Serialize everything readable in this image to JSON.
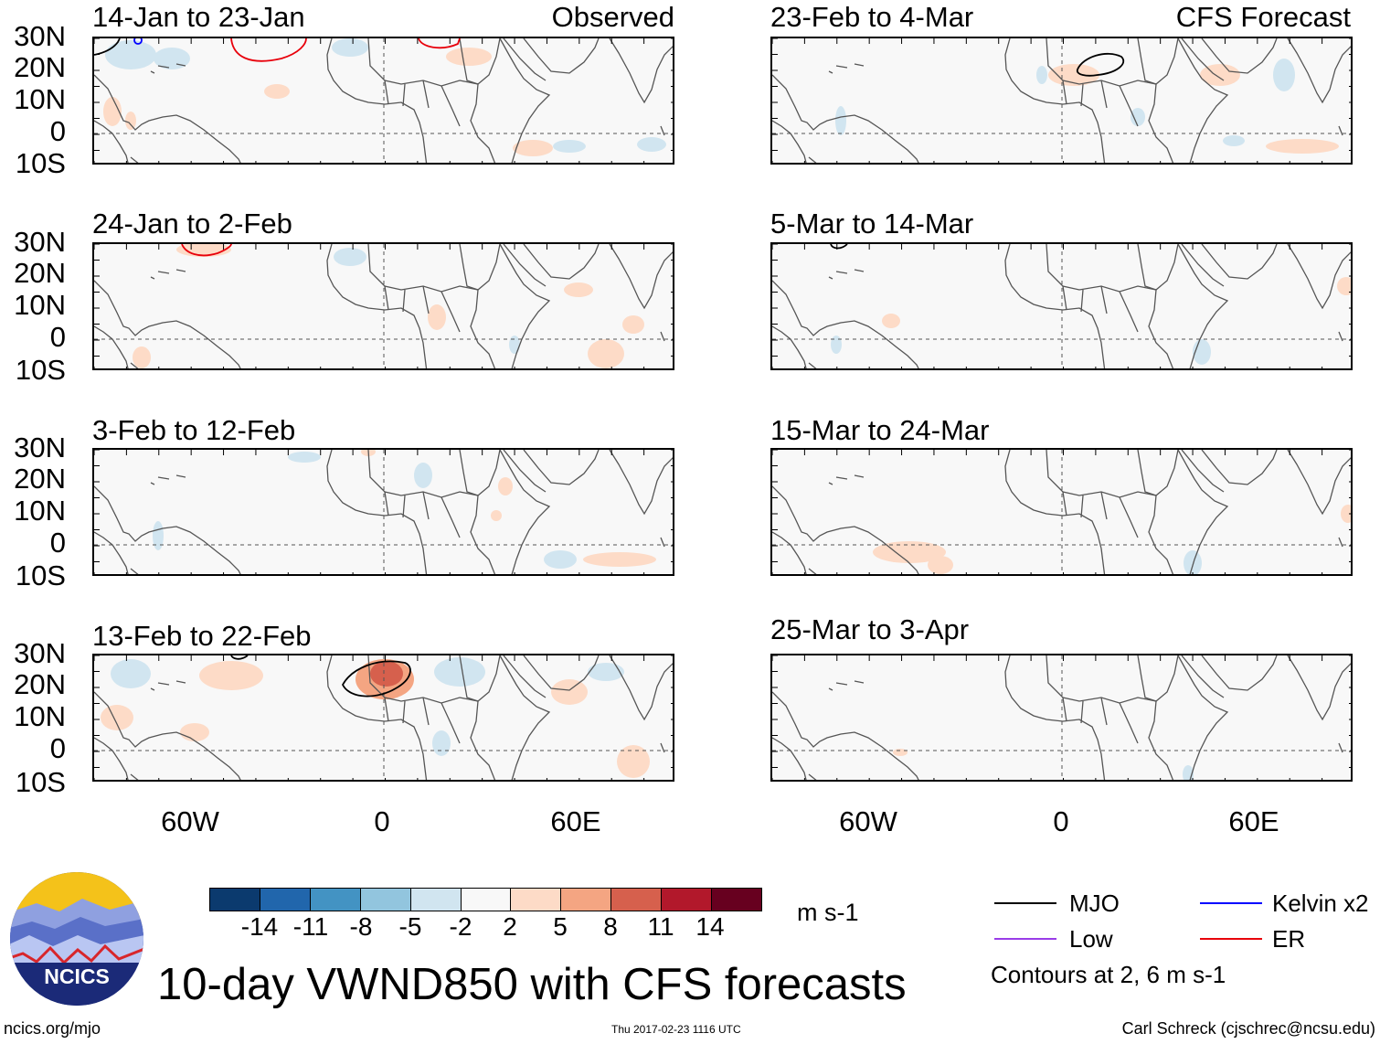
{
  "chart_data": {
    "type": "heatmap",
    "title": "10-day VWND850 with CFS forecasts",
    "variable": "VWND850",
    "units": "m s-1",
    "lat_ticks": [
      "30N",
      "20N",
      "10N",
      "0",
      "10S"
    ],
    "lon_ticks": [
      "60W",
      "0",
      "60E"
    ],
    "observed_label": "Observed",
    "forecast_label": "CFS Forecast",
    "panels_left": [
      {
        "period": "14-Jan to 23-Jan"
      },
      {
        "period": "24-Jan to 2-Feb"
      },
      {
        "period": "3-Feb to 12-Feb"
      },
      {
        "period": "13-Feb to 22-Feb"
      }
    ],
    "panels_right": [
      {
        "period": "23-Feb to 4-Mar"
      },
      {
        "period": "5-Mar to 14-Mar"
      },
      {
        "period": "15-Mar to 24-Mar"
      },
      {
        "period": "25-Mar to 3-Apr"
      }
    ],
    "colorbar": {
      "ticks": [
        "-14",
        "-11",
        "-8",
        "-5",
        "-2",
        "2",
        "5",
        "8",
        "11",
        "14"
      ],
      "colors": [
        "#0b3a6e",
        "#2166ac",
        "#4393c3",
        "#92c5de",
        "#d1e5f0",
        "#f8f8f8",
        "#fddbc7",
        "#f4a582",
        "#d6604d",
        "#b2182b",
        "#67001f"
      ]
    },
    "legend": [
      {
        "label": "MJO",
        "color": "#000000"
      },
      {
        "label": "Kelvin x2",
        "color": "#0000ff"
      },
      {
        "label": "Low",
        "color": "#9a3ce8"
      },
      {
        "label": "ER",
        "color": "#e8000b"
      }
    ],
    "contour_note": "Contours at 2, 6 m s-1"
  },
  "logo": {
    "text": "NCICS"
  },
  "footer": {
    "url": "ncics.org/mjo",
    "timestamp": "Thu 2017-02-23 1116 UTC",
    "author": "Carl Schreck (cjschrec@ncsu.edu)"
  }
}
